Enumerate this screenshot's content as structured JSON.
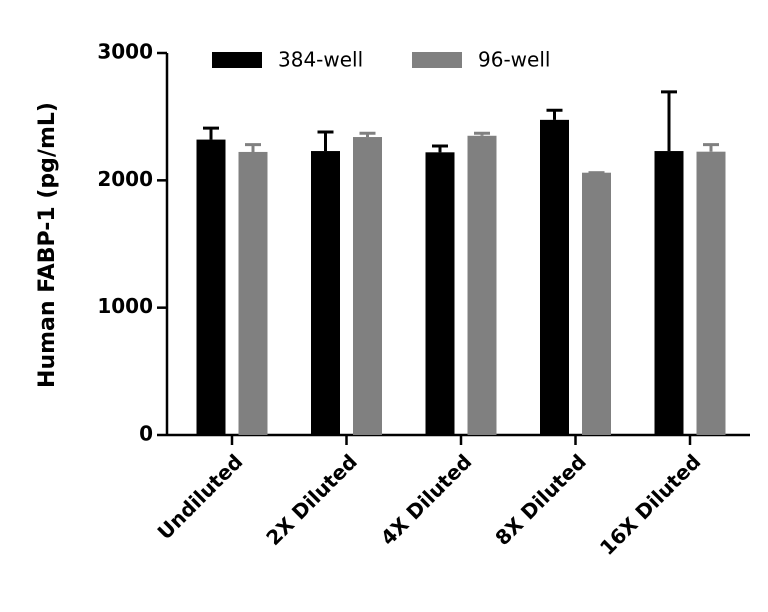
{
  "chart_data": {
    "type": "bar",
    "y_label": "Human FABP-1 (pg/mL)",
    "categories": [
      "Undiluted",
      "2X Diluted",
      "4X Diluted",
      "8X Diluted",
      "16X Diluted"
    ],
    "series": [
      {
        "name": "384-well",
        "color": "#000000",
        "values": [
          2320,
          2230,
          2220,
          2475,
          2230
        ],
        "errors": [
          90,
          150,
          50,
          75,
          465
        ]
      },
      {
        "name": "96-well",
        "color": "#808080",
        "values": [
          2223,
          2340,
          2350,
          2060,
          2225
        ],
        "errors": [
          57,
          30,
          20,
          0,
          55
        ]
      }
    ],
    "ylim": [
      0,
      3000
    ],
    "yticks": [
      0,
      1000,
      2000,
      3000
    ],
    "legend": "top"
  }
}
